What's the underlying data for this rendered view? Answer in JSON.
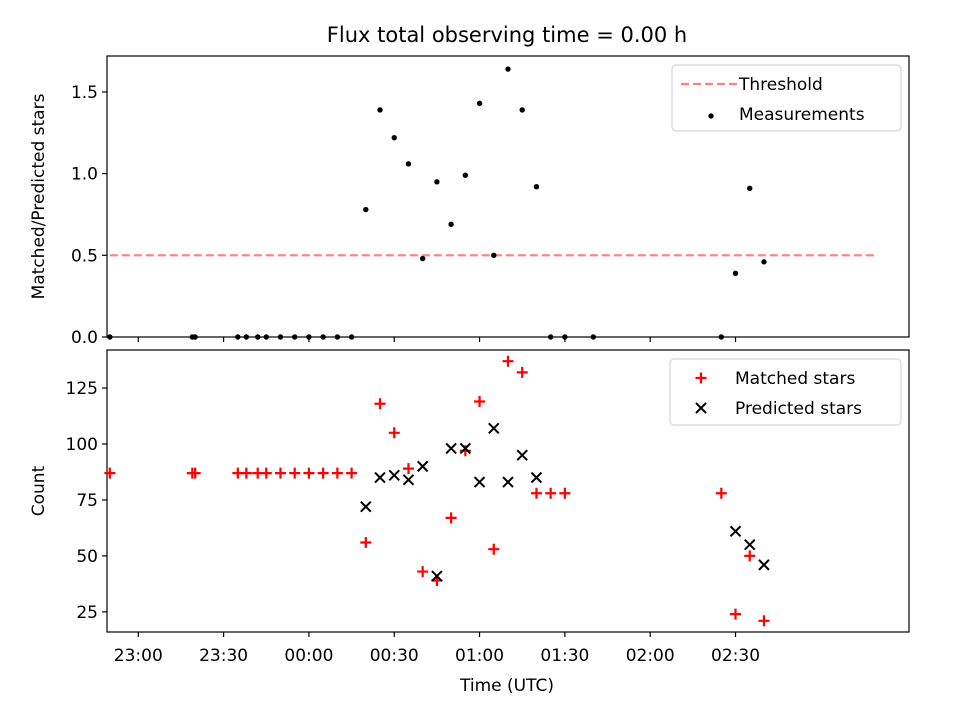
{
  "title": "Flux total observing time = 0.00 h",
  "xlabel": "Time (UTC)",
  "x_tick_labels": [
    "23:00",
    "23:30",
    "00:00",
    "00:30",
    "01:00",
    "01:30",
    "02:00",
    "02:30"
  ],
  "chart_data": [
    {
      "type": "scatter",
      "ylabel": "Matched/Predicted stars",
      "y_ticks": [
        0.0,
        0.5,
        1.0,
        1.5
      ],
      "y_tick_labels": [
        "0.0",
        "0.5",
        "1.0",
        "1.5"
      ],
      "ylim": [
        0,
        1.72
      ],
      "x_unit": "minutes after 22:00 UTC",
      "xlim": [
        -11,
        271
      ],
      "legend_position": "upper right",
      "grid": false,
      "series": [
        {
          "name": "Threshold",
          "kind": "dashed-line",
          "color": "#ff7f7f",
          "x": [
            -10,
            260
          ],
          "y": [
            0.5,
            0.5
          ]
        },
        {
          "name": "Measurements",
          "kind": "dot",
          "color": "#000000",
          "x": [
            -10,
            19,
            20,
            35,
            38,
            42,
            45,
            50,
            55,
            60,
            65,
            70,
            75,
            80,
            85,
            90,
            95,
            100,
            105,
            110,
            115,
            120,
            125,
            130,
            135,
            140,
            145,
            150,
            160,
            205,
            210,
            215,
            220
          ],
          "y": [
            0,
            0,
            0,
            0,
            0,
            0,
            0,
            0,
            0,
            0,
            0,
            0,
            0,
            0.78,
            1.39,
            1.22,
            1.06,
            0.48,
            0.95,
            0.69,
            0.99,
            1.43,
            0.5,
            1.64,
            1.39,
            0.92,
            0,
            0,
            0,
            0,
            0.39,
            0.91,
            0.46
          ]
        }
      ]
    },
    {
      "type": "scatter",
      "ylabel": "Count",
      "y_ticks": [
        25,
        50,
        75,
        100,
        125
      ],
      "y_tick_labels": [
        "25",
        "50",
        "75",
        "100",
        "125"
      ],
      "ylim": [
        16,
        142
      ],
      "x_unit": "minutes after 22:00 UTC",
      "xlim": [
        -11,
        271
      ],
      "legend_position": "upper right",
      "grid": false,
      "series": [
        {
          "name": "Matched stars",
          "marker": "plus",
          "color": "#ff0000",
          "x": [
            -10,
            19,
            20,
            35,
            38,
            42,
            45,
            50,
            55,
            60,
            65,
            70,
            75,
            80,
            85,
            90,
            95,
            100,
            105,
            110,
            115,
            120,
            125,
            130,
            135,
            140,
            145,
            150,
            205,
            210,
            215,
            220
          ],
          "y": [
            87,
            87,
            87,
            87,
            87,
            87,
            87,
            87,
            87,
            87,
            87,
            87,
            87,
            56,
            118,
            105,
            89,
            43,
            39,
            67,
            97,
            119,
            53,
            137,
            132,
            78,
            78,
            78,
            78,
            24,
            50,
            21
          ]
        },
        {
          "name": "Predicted stars",
          "marker": "x",
          "color": "#000000",
          "x": [
            80,
            85,
            90,
            95,
            100,
            105,
            110,
            115,
            120,
            125,
            130,
            135,
            140,
            210,
            215,
            220
          ],
          "y": [
            72,
            85,
            86,
            84,
            90,
            41,
            98,
            98,
            83,
            107,
            83,
            95,
            85,
            61,
            55,
            46
          ]
        }
      ]
    }
  ]
}
